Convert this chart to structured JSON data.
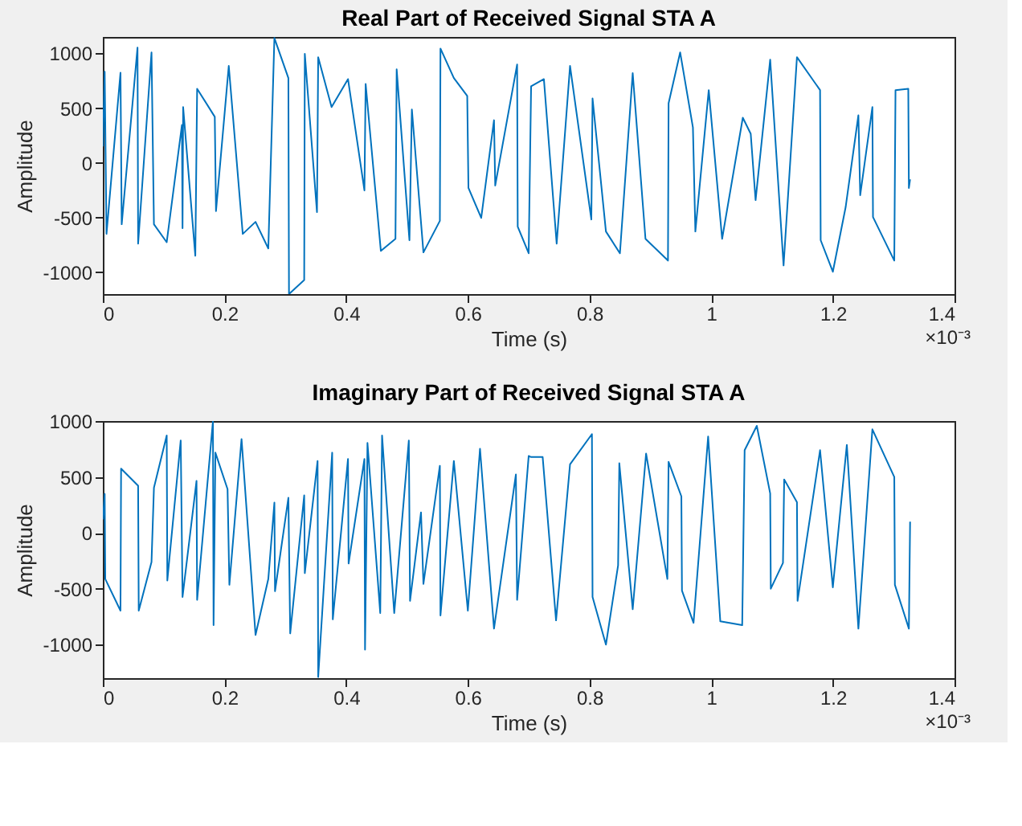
{
  "chart_data": [
    {
      "type": "line",
      "title": "Real Part of Received Signal STA A",
      "xlabel": "Time (s)",
      "ylabel": "Amplitude",
      "annotations": [
        "×10⁻³"
      ],
      "xlim": [
        0,
        1.4
      ],
      "xticks": [
        0,
        0.2,
        0.4,
        0.6,
        0.8,
        1,
        1.2,
        1.4
      ],
      "ylim": [
        -1200,
        1150
      ],
      "yticks": [
        -1000,
        -500,
        0,
        500,
        1000
      ],
      "series": [
        {
          "color": "#0072bd",
          "x": [
            0,
            0.003,
            0.006,
            0.029,
            0.031,
            0.057,
            0.058,
            0.08,
            0.084,
            0.105,
            0.13,
            0.131,
            0.132,
            0.152,
            0.155,
            0.184,
            0.186,
            0.207,
            0.23,
            0.251,
            0.272,
            0.282,
            0.305,
            0.306,
            0.331,
            0.332,
            0.352,
            0.354,
            0.376,
            0.403,
            0.43,
            0.432,
            0.457,
            0.481,
            0.483,
            0.504,
            0.508,
            0.527,
            0.554,
            0.555,
            0.577,
            0.599,
            0.601,
            0.622,
            0.643,
            0.645,
            0.681,
            0.682,
            0.7,
            0.704,
            0.725,
            0.746,
            0.768,
            0.803,
            0.805,
            0.827,
            0.85,
            0.871,
            0.892,
            0.929,
            0.93,
            0.949,
            0.97,
            0.974,
            0.996,
            1.018,
            1.052,
            1.065,
            1.073,
            1.097,
            1.119,
            1.141,
            1.179,
            1.18,
            1.2,
            1.221,
            1.242,
            1.245,
            1.265,
            1.266,
            1.301,
            1.303,
            1.324,
            1.325,
            1.327
          ],
          "values": [
            150,
            832,
            -650,
            823,
            -562,
            1053,
            -739,
            1009,
            -562,
            -726,
            345,
            -597,
            509,
            -850,
            677,
            420,
            -442,
            885,
            -650,
            -540,
            -783,
            1140,
            774,
            -1200,
            -1071,
            996,
            -451,
            965,
            509,
            765,
            -252,
            721,
            -805,
            -695,
            854,
            -708,
            487,
            -819,
            -531,
            1044,
            774,
            611,
            -230,
            -504,
            389,
            -208,
            898,
            -584,
            -827,
            699,
            765,
            -739,
            885,
            -518,
            588,
            -628,
            -827,
            819,
            -695,
            -894,
            544,
            1009,
            323,
            -628,
            664,
            -695,
            412,
            265,
            -341,
            942,
            -938,
            965,
            664,
            -708,
            -996,
            -407,
            434,
            -296,
            509,
            -496,
            -894,
            664,
            677,
            -230,
            -150
          ]
        }
      ]
    },
    {
      "type": "line",
      "title": "Imaginary Part of Received Signal STA A",
      "xlabel": "Time (s)",
      "ylabel": "Amplitude",
      "annotations": [
        "×10⁻³"
      ],
      "xlim": [
        0,
        1.4
      ],
      "xticks": [
        0,
        0.2,
        0.4,
        0.6,
        0.8,
        1,
        1.2,
        1.4
      ],
      "ylim": [
        -1300,
        1000
      ],
      "yticks": [
        -1000,
        -500,
        0,
        500,
        1000
      ],
      "series": [
        {
          "color": "#0072bd",
          "x": [
            0,
            0.003,
            0.004,
            0.029,
            0.03,
            0.058,
            0.059,
            0.08,
            0.084,
            0.105,
            0.106,
            0.128,
            0.131,
            0.154,
            0.155,
            0.181,
            0.182,
            0.185,
            0.205,
            0.208,
            0.228,
            0.251,
            0.272,
            0.282,
            0.283,
            0.305,
            0.308,
            0.331,
            0.332,
            0.353,
            0.354,
            0.377,
            0.378,
            0.403,
            0.404,
            0.43,
            0.431,
            0.435,
            0.456,
            0.459,
            0.479,
            0.503,
            0.505,
            0.523,
            0.527,
            0.554,
            0.555,
            0.577,
            0.6,
            0.62,
            0.643,
            0.679,
            0.681,
            0.7,
            0.704,
            0.723,
            0.745,
            0.768,
            0.804,
            0.805,
            0.827,
            0.847,
            0.849,
            0.871,
            0.893,
            0.928,
            0.93,
            0.951,
            0.952,
            0.971,
            0.995,
            1.015,
            1.051,
            1.055,
            1.075,
            1.097,
            1.098,
            1.118,
            1.12,
            1.141,
            1.142,
            1.179,
            1.2,
            1.223,
            1.242,
            1.265,
            1.301,
            1.302,
            1.325,
            1.327
          ],
          "values": [
            120,
            348,
            -413,
            -696,
            574,
            422,
            -696,
            -261,
            404,
            870,
            -426,
            826,
            -574,
            465,
            -600,
            1000,
            -826,
            717,
            391,
            -465,
            839,
            -913,
            -413,
            270,
            -522,
            313,
            -900,
            335,
            -361,
            643,
            -1290,
            717,
            -774,
            661,
            -274,
            661,
            -1044,
            804,
            -717,
            870,
            -717,
            826,
            -609,
            183,
            -457,
            600,
            -739,
            643,
            -696,
            752,
            -857,
            522,
            -600,
            687,
            678,
            678,
            -783,
            613,
            883,
            -574,
            -1000,
            -291,
            622,
            -683,
            709,
            -413,
            635,
            326,
            -518,
            -805,
            861,
            -792,
            -826,
            739,
            957,
            352,
            -500,
            -270,
            478,
            274,
            -609,
            739,
            -487,
            787,
            -857,
            926,
            500,
            -465,
            -857,
            100
          ]
        }
      ]
    }
  ]
}
